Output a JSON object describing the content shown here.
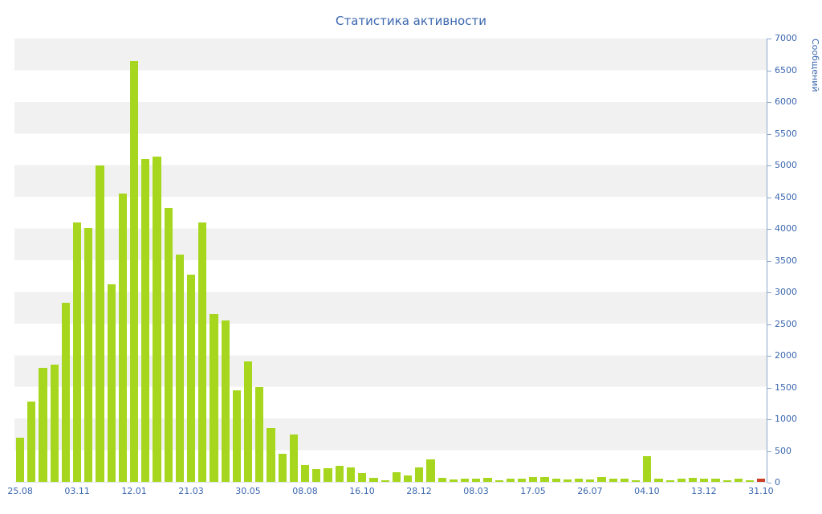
{
  "colors": {
    "bar": "#a6d71e",
    "last_bar": "#cc4125",
    "axis_text": "#3b67ae",
    "axis_line": "#8aa6cd",
    "band": "#f1f1f1",
    "background": "#ffffff"
  },
  "chart_data": {
    "type": "bar",
    "title": "Статистика активности",
    "xlabel": "",
    "ylabel": "Сообщений",
    "ylim": [
      0,
      7000
    ],
    "grid": "horizontal-bands",
    "legend": "none",
    "y_axis_side": "right",
    "y_ticks": [
      0,
      500,
      1000,
      1500,
      2000,
      2500,
      3000,
      3500,
      4000,
      4500,
      5000,
      5500,
      6000,
      6500,
      7000
    ],
    "x_labels": [
      "25.08",
      "03.11",
      "12.01",
      "21.03",
      "30.05",
      "08.08",
      "16.10",
      "28.12",
      "08.03",
      "17.05",
      "26.07",
      "04.10",
      "13.12",
      "31.10"
    ],
    "x_label_every_n_bars": 5,
    "values": [
      700,
      1270,
      1800,
      1850,
      2830,
      4090,
      4010,
      5000,
      3120,
      4550,
      6650,
      5100,
      5130,
      4330,
      3590,
      3270,
      4090,
      2650,
      2550,
      1450,
      1900,
      1500,
      850,
      450,
      750,
      270,
      200,
      215,
      250,
      230,
      140,
      60,
      25,
      155,
      105,
      230,
      350,
      60,
      40,
      55,
      45,
      60,
      30,
      55,
      45,
      80,
      70,
      50,
      35,
      55,
      40,
      75,
      50,
      55,
      30,
      400,
      45,
      25,
      50,
      60,
      45,
      55,
      30,
      45,
      25,
      50
    ],
    "last_bar_highlighted": true
  }
}
